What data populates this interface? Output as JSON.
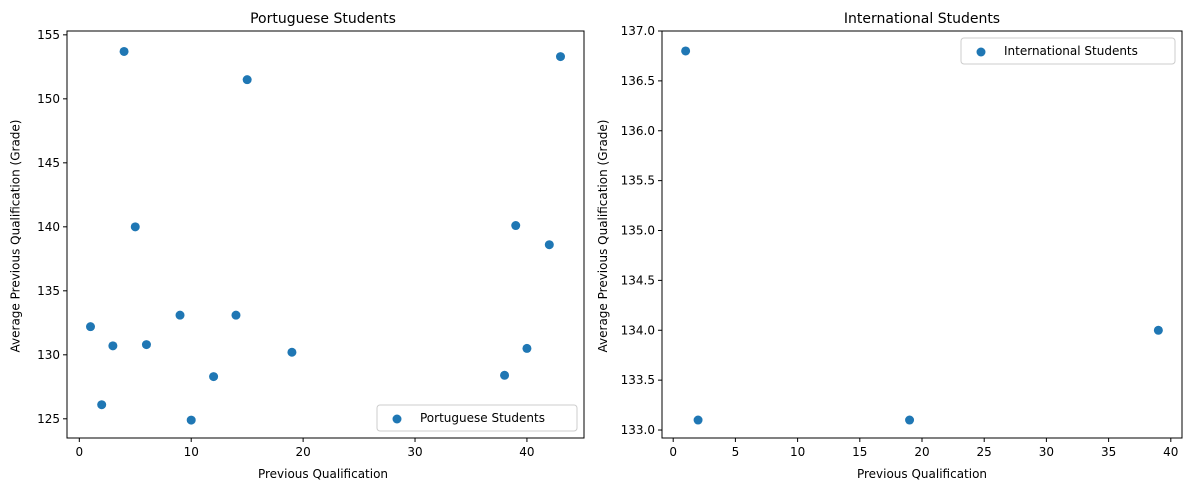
{
  "chart_data": [
    {
      "type": "scatter",
      "title": "Portuguese Students",
      "xlabel": "Previous Qualification",
      "ylabel": "Average Previous Qualification (Grade)",
      "xlim": [
        -1.1,
        45.1
      ],
      "ylim": [
        123.5,
        155.3
      ],
      "xticks": [
        0,
        10,
        20,
        30,
        40
      ],
      "yticks": [
        125,
        130,
        135,
        140,
        145,
        150,
        155
      ],
      "grid": false,
      "legend_position": "lower right",
      "series": [
        {
          "name": "Portuguese Students",
          "color": "#1f77b4",
          "marker": "circle",
          "points": [
            {
              "x": 1,
              "y": 132.2
            },
            {
              "x": 2,
              "y": 126.1
            },
            {
              "x": 3,
              "y": 130.7
            },
            {
              "x": 4,
              "y": 153.7
            },
            {
              "x": 5,
              "y": 140.0
            },
            {
              "x": 6,
              "y": 130.8
            },
            {
              "x": 9,
              "y": 133.1
            },
            {
              "x": 10,
              "y": 124.9
            },
            {
              "x": 12,
              "y": 128.3
            },
            {
              "x": 14,
              "y": 133.1
            },
            {
              "x": 15,
              "y": 151.5
            },
            {
              "x": 19,
              "y": 130.2
            },
            {
              "x": 38,
              "y": 128.4
            },
            {
              "x": 39,
              "y": 140.1
            },
            {
              "x": 40,
              "y": 130.5
            },
            {
              "x": 42,
              "y": 138.6
            },
            {
              "x": 43,
              "y": 153.3
            }
          ]
        }
      ]
    },
    {
      "type": "scatter",
      "title": "International Students",
      "xlabel": "Previous Qualification",
      "ylabel": "Average Previous Qualification (Grade)",
      "xlim": [
        -0.9,
        40.9
      ],
      "ylim": [
        132.92,
        137.0
      ],
      "xticks": [
        0,
        5,
        10,
        15,
        20,
        25,
        30,
        35,
        40
      ],
      "yticks": [
        133.0,
        133.5,
        134.0,
        134.5,
        135.0,
        135.5,
        136.0,
        136.5,
        137.0
      ],
      "ytick_decimals": 1,
      "grid": false,
      "legend_position": "upper right",
      "series": [
        {
          "name": "International Students",
          "color": "#1f77b4",
          "marker": "circle",
          "points": [
            {
              "x": 1,
              "y": 136.8
            },
            {
              "x": 2,
              "y": 133.1
            },
            {
              "x": 19,
              "y": 133.1
            },
            {
              "x": 39,
              "y": 134.0
            }
          ]
        }
      ]
    }
  ]
}
